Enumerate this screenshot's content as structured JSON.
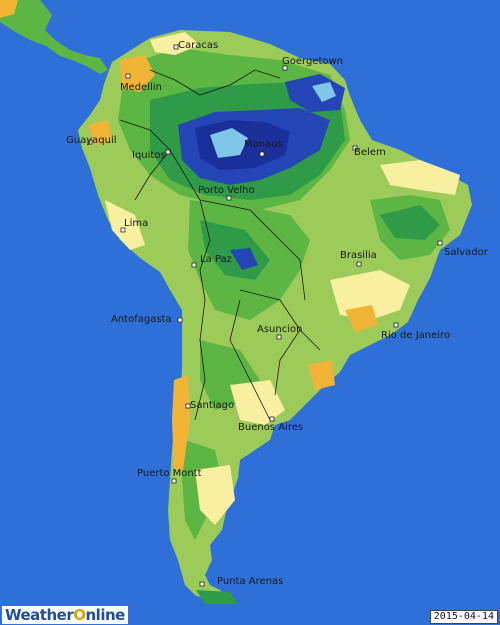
{
  "cities": [
    {
      "name": "Caracas"
    },
    {
      "name": "Goergetown"
    },
    {
      "name": "Medellin"
    },
    {
      "name": "Guayaquil"
    },
    {
      "name": "Iquitos"
    },
    {
      "name": "Manaus"
    },
    {
      "name": "Belem"
    },
    {
      "name": "Porto Velho"
    },
    {
      "name": "Lima"
    },
    {
      "name": "La Paz"
    },
    {
      "name": "Brasilia"
    },
    {
      "name": "Salvador"
    },
    {
      "name": "Antofagasta"
    },
    {
      "name": "Asuncion"
    },
    {
      "name": "Rio de Janeiro"
    },
    {
      "name": "Santiago"
    },
    {
      "name": "Buenos Aires"
    },
    {
      "name": "Puerto Montt"
    },
    {
      "name": "Punta Arenas"
    }
  ],
  "colors": {
    "ocean": "#2f6fd8",
    "dry_orange": "#f2b437",
    "dry_yellow": "#f8efa0",
    "light_green": "#9ccb5a",
    "mid_green": "#5db544",
    "dark_green": "#2f9a48",
    "wet_blue": "#2345b5",
    "very_wet": "#1a2f9a",
    "wettest": "#7fc6ea"
  },
  "brand": {
    "part1": "Weather",
    "part2": "O",
    "part3": "nline"
  },
  "date": "2015-04-14"
}
